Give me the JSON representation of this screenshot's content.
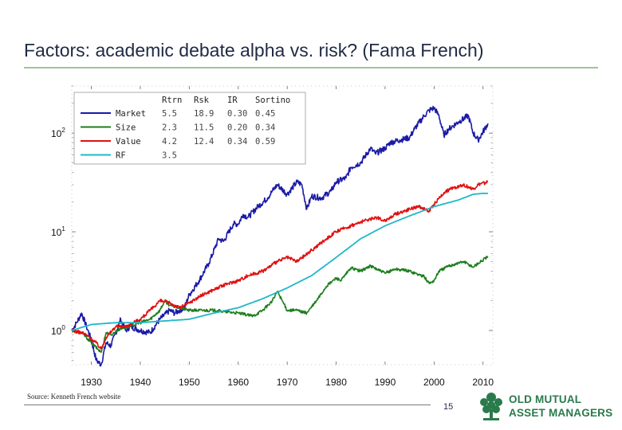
{
  "slide": {
    "title": "Factors: academic debate alpha vs. risk? (Fama French)",
    "source": "Source: Kenneth French website",
    "page_number": "15",
    "logo_line1": "OLD MUTUAL",
    "logo_line2": "ASSET MANAGERS"
  },
  "colors": {
    "market": "#1a1aa6",
    "size": "#1e7d1e",
    "value": "#e01010",
    "rf": "#20b8c8",
    "title_rule": "#9fc494",
    "logo": "#2a7a4a"
  },
  "chart_data": {
    "type": "line",
    "title": "",
    "xlabel": "",
    "ylabel": "",
    "y_scale": "log",
    "xlim": [
      1926,
      2012
    ],
    "ylim": [
      0.45,
      300
    ],
    "x_ticks": [
      1930,
      1940,
      1950,
      1960,
      1970,
      1980,
      1990,
      2000,
      2010
    ],
    "x_tick_labels": [
      "1930",
      "1940",
      "1950",
      "1960",
      "1970",
      "1980",
      "1990",
      "2000",
      "2010"
    ],
    "y_ticks": [
      1,
      10,
      100
    ],
    "y_tick_labels": [
      {
        "base": "10",
        "exp": "0"
      },
      {
        "base": "10",
        "exp": "1"
      },
      {
        "base": "10",
        "exp": "2"
      }
    ],
    "legend_placement": "top-left",
    "legend_header": [
      "Rtrn",
      "Rsk",
      "IR",
      "Sortino"
    ],
    "series": [
      {
        "name": "Market",
        "stats": [
          "5.5",
          "18.9",
          "0.30",
          "0.45"
        ],
        "x": [
          1926,
          1927,
          1928,
          1929,
          1930,
          1931,
          1932,
          1933,
          1934,
          1935,
          1936,
          1937,
          1938,
          1940,
          1942,
          1944,
          1946,
          1947,
          1949,
          1950,
          1952,
          1954,
          1956,
          1957,
          1959,
          1960,
          1961,
          1962,
          1964,
          1966,
          1967,
          1968,
          1970,
          1972,
          1973,
          1974,
          1975,
          1977,
          1979,
          1980,
          1982,
          1983,
          1985,
          1987,
          1988,
          1990,
          1991,
          1993,
          1995,
          1996,
          1998,
          1999,
          2000,
          2001,
          2002,
          2003,
          2005,
          2007,
          2008,
          2009,
          2011
        ],
        "values": [
          1.0,
          1.2,
          1.5,
          1.1,
          0.8,
          0.5,
          0.45,
          0.75,
          0.7,
          0.95,
          1.3,
          1.0,
          1.1,
          1.0,
          0.95,
          1.3,
          1.6,
          1.5,
          1.7,
          2.3,
          3.2,
          4.8,
          8.5,
          8.0,
          12.0,
          12.0,
          15.0,
          14.0,
          18.0,
          22.0,
          26.0,
          30.0,
          24.0,
          32.0,
          30.0,
          17.0,
          23.0,
          22.0,
          26.0,
          32.0,
          35.0,
          45.0,
          50.0,
          70.0,
          62.0,
          70.0,
          80.0,
          85.0,
          90.0,
          110.0,
          150.0,
          170.0,
          180.0,
          150.0,
          95.0,
          110.0,
          130.0,
          150.0,
          100.0,
          85.0,
          125.0
        ]
      },
      {
        "name": "Size",
        "stats": [
          "2.3",
          "11.5",
          "0.20",
          "0.34"
        ],
        "x": [
          1926,
          1928,
          1929,
          1930,
          1932,
          1933,
          1934,
          1936,
          1938,
          1940,
          1942,
          1944,
          1945,
          1946,
          1948,
          1950,
          1955,
          1960,
          1963,
          1965,
          1967,
          1968,
          1969,
          1970,
          1972,
          1974,
          1976,
          1978,
          1980,
          1981,
          1983,
          1985,
          1987,
          1990,
          1992,
          1995,
          1998,
          1999,
          2000,
          2001,
          2003,
          2006,
          2008,
          2009,
          2011
        ],
        "values": [
          1.0,
          0.95,
          0.85,
          0.75,
          0.6,
          0.95,
          0.9,
          1.05,
          1.1,
          1.2,
          1.3,
          1.6,
          2.0,
          1.8,
          1.7,
          1.6,
          1.6,
          1.5,
          1.4,
          1.6,
          2.0,
          2.5,
          2.0,
          1.6,
          1.6,
          1.5,
          2.0,
          2.8,
          3.4,
          3.2,
          4.3,
          4.0,
          4.5,
          3.8,
          4.2,
          4.0,
          3.5,
          3.0,
          3.2,
          4.0,
          4.5,
          5.0,
          4.4,
          4.8,
          5.6
        ]
      },
      {
        "name": "Value",
        "stats": [
          "4.2",
          "12.4",
          "0.34",
          "0.59"
        ],
        "x": [
          1926,
          1928,
          1929,
          1931,
          1932,
          1933,
          1935,
          1937,
          1940,
          1942,
          1944,
          1946,
          1948,
          1950,
          1952,
          1955,
          1958,
          1960,
          1962,
          1965,
          1968,
          1970,
          1972,
          1975,
          1978,
          1980,
          1982,
          1985,
          1988,
          1990,
          1992,
          1995,
          1997,
          1999,
          2000,
          2002,
          2004,
          2006,
          2008,
          2009,
          2011
        ],
        "values": [
          1.0,
          0.95,
          0.9,
          0.75,
          0.65,
          0.85,
          1.1,
          1.1,
          1.3,
          1.6,
          2.0,
          1.9,
          1.7,
          1.9,
          2.2,
          2.6,
          3.0,
          3.2,
          3.6,
          4.0,
          5.0,
          5.5,
          5.0,
          6.5,
          8.5,
          10.0,
          11.0,
          12.5,
          14.0,
          13.0,
          15.0,
          17.0,
          18.0,
          16.0,
          19.0,
          25.0,
          28.0,
          30.0,
          27.0,
          30.0,
          32.0
        ]
      },
      {
        "name": "RF",
        "stats": [
          "3.5",
          "",
          "",
          ""
        ],
        "x": [
          1926,
          1930,
          1935,
          1940,
          1945,
          1950,
          1955,
          1960,
          1965,
          1970,
          1975,
          1980,
          1985,
          1990,
          1995,
          2000,
          2005,
          2008,
          2010,
          2011
        ],
        "values": [
          1.0,
          1.15,
          1.2,
          1.2,
          1.25,
          1.3,
          1.5,
          1.7,
          2.1,
          2.7,
          3.6,
          5.5,
          8.5,
          11.5,
          14.5,
          18.0,
          21.0,
          24.0,
          24.5,
          24.5
        ]
      }
    ]
  }
}
